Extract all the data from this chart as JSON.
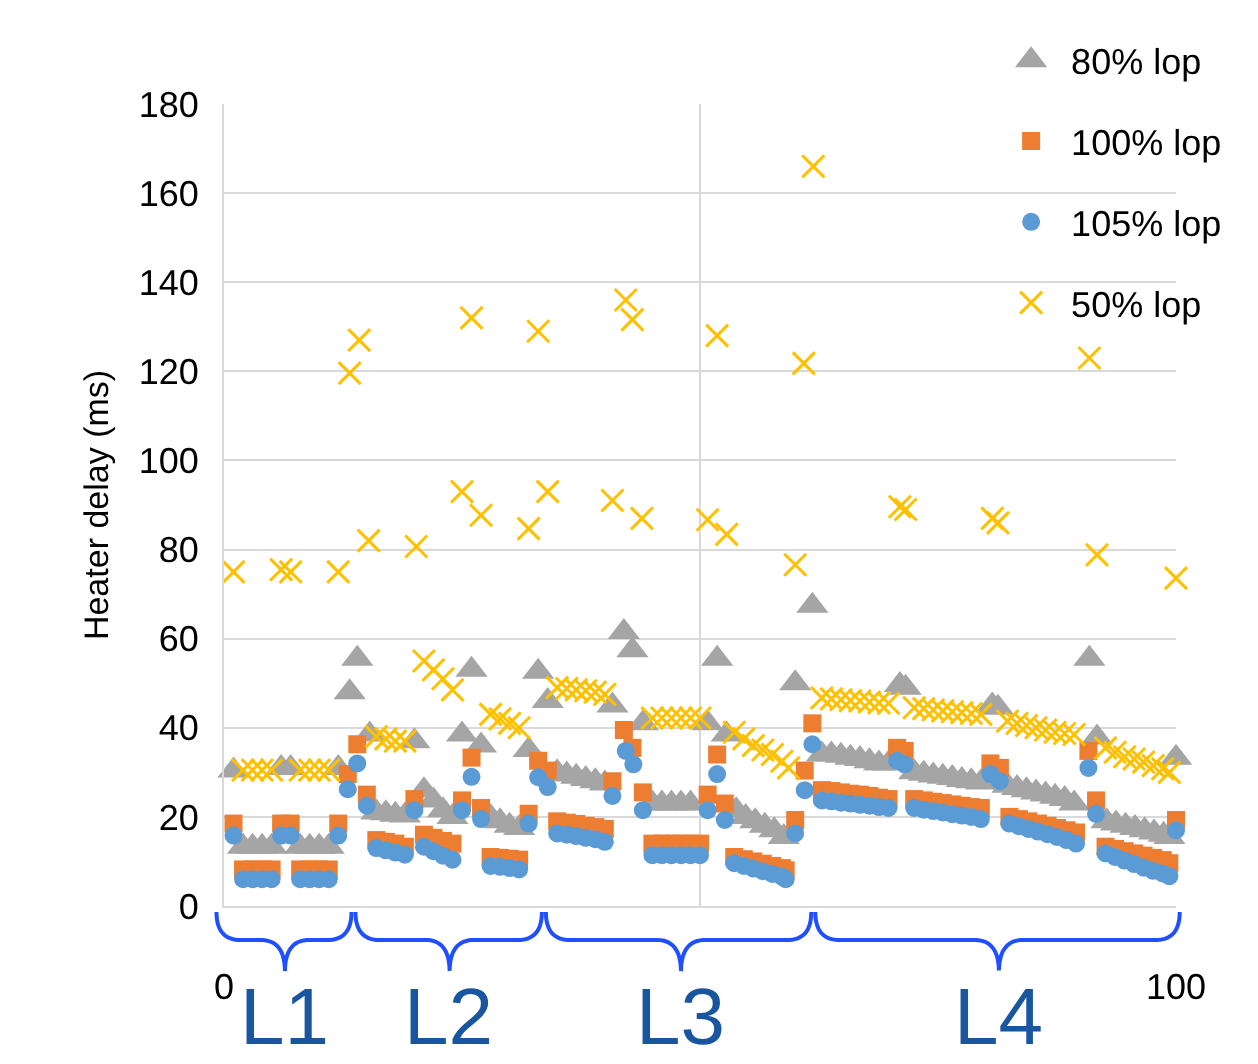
{
  "chart_data": {
    "type": "scatter",
    "ylabel": "Heater delay (ms)",
    "xlim": [
      0,
      100
    ],
    "xticks": [
      0,
      {
        "value": 50,
        "label": null
      },
      100
    ],
    "ylim": [
      0,
      180
    ],
    "yticks": [
      0,
      20,
      40,
      60,
      80,
      100,
      120,
      140,
      160,
      180
    ],
    "grid": true,
    "legend": "top right",
    "annotations": [
      "L1",
      "L2",
      "L3",
      "L4"
    ],
    "series": [
      {
        "name": "80% lop",
        "color": "#a5a5a5",
        "marker": "triangle",
        "x": [
          1,
          2,
          3,
          4,
          5,
          6,
          7,
          8,
          9,
          10,
          11,
          12,
          13.2,
          14,
          15.3,
          16,
          17,
          18,
          19,
          20,
          21,
          22,
          23,
          24,
          25,
          26,
          27,
          28,
          29,
          30,
          31,
          32,
          33,
          34,
          35,
          36,
          37,
          38,
          39,
          40,
          40.8,
          42,
          42.9,
          44,
          45,
          46,
          47,
          48,
          49,
          50.8,
          51.8,
          52.8,
          53.8,
          54.8,
          55.8,
          56.8,
          57.8,
          58.8,
          60,
          61.8,
          62.8,
          63.8,
          64.8,
          65.8,
          66.8,
          67.8,
          68.8,
          69.8,
          71,
          71.6,
          72.5,
          73.5,
          74.5,
          75.5,
          76.5,
          77.5,
          78.5,
          79.5,
          80.7,
          81.3,
          82.3,
          83.3,
          84.3,
          85.3,
          86.3,
          87.3,
          88.3,
          89.3,
          90.9,
          91.7,
          92.7,
          93.7,
          94.7,
          95.7,
          96.7,
          97.7,
          98.7,
          99.3,
          100
        ],
        "values": [
          30.4,
          13.3,
          13.3,
          13.3,
          13.3,
          31,
          31,
          13.3,
          13.3,
          13.3,
          13.3,
          31,
          48,
          55.5,
          38.5,
          21,
          20.8,
          20.5,
          20.3,
          37,
          26,
          23.7,
          21.5,
          20,
          38.5,
          53,
          36,
          20,
          19,
          18,
          17.5,
          35,
          52.6,
          46,
          30,
          29.5,
          29,
          28.5,
          28,
          27.5,
          45,
          61.5,
          57.4,
          41,
          23,
          23,
          23,
          23,
          23,
          41,
          55.5,
          38.5,
          21.5,
          20,
          19,
          18,
          17,
          15.5,
          50,
          67.4,
          34,
          34,
          33.7,
          33.3,
          33,
          32.5,
          32,
          32,
          49.6,
          49,
          30,
          29.7,
          29.3,
          29,
          28.7,
          28.3,
          28,
          27.7,
          45,
          44.5,
          27,
          26.5,
          26,
          25.5,
          25,
          24.5,
          24,
          23,
          55.5,
          37.8,
          19,
          18.5,
          18,
          17.5,
          17,
          16.5,
          16,
          15.5,
          33.3
        ]
      },
      {
        "name": "100% lop",
        "color": "#ed7d31",
        "marker": "square",
        "x": [
          1,
          2,
          3,
          4,
          5,
          6,
          7,
          8,
          9,
          10,
          11,
          12,
          13,
          14,
          15,
          16,
          17,
          18,
          19,
          20,
          21,
          22,
          23,
          24,
          25,
          26,
          27,
          28,
          29,
          30,
          31,
          32,
          33,
          34,
          35,
          36,
          37,
          38,
          39,
          40,
          40.8,
          42,
          42.9,
          44,
          45,
          46,
          47,
          48,
          49,
          50,
          50.8,
          51.8,
          52.6,
          53.6,
          54.6,
          55.6,
          56.6,
          57.6,
          58.6,
          59,
          60,
          61,
          61.8,
          62.8,
          63.8,
          64.8,
          65.8,
          66.8,
          67.8,
          68.8,
          69.8,
          70.7,
          71.5,
          72.5,
          73.5,
          74.5,
          75.5,
          76.5,
          77.5,
          78.5,
          79.5,
          80.5,
          81.5,
          82.5,
          83.5,
          84.5,
          85.5,
          86.5,
          87.5,
          88.5,
          89.5,
          90.8,
          91.6,
          92.6,
          93.6,
          94.6,
          95.6,
          96.6,
          97.6,
          98.6,
          99.3,
          100
        ],
        "values": [
          18.5,
          8.2,
          8.2,
          8.2,
          8.2,
          18.5,
          18.5,
          8.2,
          8.2,
          8.2,
          8.2,
          18.5,
          29.6,
          36.3,
          25,
          14.8,
          14.4,
          14,
          13.3,
          24,
          16,
          15.3,
          14.6,
          14,
          23.7,
          33.3,
          22,
          11,
          10.8,
          10.6,
          10.4,
          20.7,
          32.6,
          30.4,
          19,
          18.7,
          18.4,
          18,
          17.7,
          17.3,
          28,
          39.5,
          35.5,
          25.5,
          14,
          14,
          14,
          14,
          14,
          14,
          25,
          34,
          23,
          11,
          10.5,
          10,
          9.5,
          9,
          8.5,
          8,
          19.3,
          30.4,
          41,
          26,
          25.8,
          25.5,
          25.2,
          25,
          24.7,
          24.3,
          24,
          35.5,
          34.8,
          24,
          23.7,
          23.4,
          23.1,
          22.8,
          22.5,
          22.2,
          22,
          32,
          31,
          20,
          19.5,
          19,
          18.5,
          18,
          17.5,
          17,
          16.5,
          34.8,
          23.7,
          13.3,
          12.8,
          12.3,
          11.8,
          11.3,
          10.8,
          10.3,
          9.6,
          19.3
        ]
      },
      {
        "name": "105% lop",
        "color": "#5b9bd5",
        "marker": "circle",
        "x": [
          1,
          2,
          3,
          4,
          5,
          6,
          7,
          8,
          9,
          10,
          11,
          12,
          13,
          14,
          15,
          16,
          17,
          18,
          19,
          20,
          21,
          22,
          23,
          24,
          25,
          26,
          27,
          28,
          29,
          30,
          31,
          32,
          33,
          34,
          35,
          36,
          37,
          38,
          39,
          40,
          40.8,
          42.2,
          43,
          44,
          45,
          46,
          47,
          48,
          49,
          50,
          50.8,
          51.8,
          52.6,
          53.6,
          54.6,
          55.6,
          56.6,
          57.6,
          58.6,
          59,
          60,
          61,
          61.8,
          62.8,
          63.8,
          64.8,
          65.8,
          66.8,
          67.8,
          68.8,
          69.8,
          70.7,
          71.5,
          72.5,
          73.5,
          74.5,
          75.5,
          76.5,
          77.5,
          78.5,
          79.5,
          80.5,
          81.5,
          82.5,
          83.5,
          84.5,
          85.5,
          86.5,
          87.5,
          88.5,
          89.5,
          90.8,
          91.6,
          92.6,
          93.6,
          94.6,
          95.6,
          96.6,
          97.6,
          98.6,
          99.3,
          100
        ],
        "values": [
          15.8,
          6,
          6,
          6,
          6,
          15.8,
          15.8,
          6,
          6,
          6,
          6,
          15.8,
          26.2,
          32,
          22.5,
          13,
          12.5,
          12,
          11.5,
          21.5,
          13.3,
          12.3,
          11.3,
          10.4,
          21.5,
          29,
          19.5,
          9,
          8.8,
          8.5,
          8.2,
          18.5,
          28.9,
          26.7,
          16.3,
          16,
          15.7,
          15.3,
          15,
          14.4,
          24.7,
          34.8,
          31.8,
          21.5,
          11.4,
          11.4,
          11.4,
          11.4,
          11.4,
          11.4,
          21.5,
          29.6,
          19.3,
          9.6,
          9,
          8.4,
          7.8,
          7.2,
          6.6,
          6,
          16.3,
          26,
          36.3,
          23.7,
          23.5,
          23.2,
          23,
          22.7,
          22.5,
          22.2,
          22,
          32.6,
          31.8,
          22,
          21.6,
          21.3,
          21,
          20.6,
          20.3,
          20,
          19.5,
          29.6,
          28,
          18.5,
          17.9,
          17.3,
          16.7,
          16.1,
          15.5,
          14.8,
          14,
          31,
          20.7,
          11.8,
          11,
          10.2,
          9.4,
          8.6,
          7.9,
          7.3,
          6.7,
          17
        ]
      },
      {
        "name": "50% lop",
        "color": "#ffc000",
        "marker": "cross",
        "x": [
          1,
          2,
          3,
          4,
          5,
          6,
          7,
          8,
          9,
          10,
          11,
          12,
          13.2,
          14.2,
          15.2,
          16,
          17,
          18,
          19,
          20.2,
          21,
          22,
          23,
          24,
          25,
          26,
          27,
          28,
          29,
          30,
          31,
          32,
          33,
          34,
          35,
          36,
          37,
          38,
          39,
          40,
          40.8,
          42.2,
          42.9,
          43.9,
          45,
          46,
          47,
          48,
          49,
          50,
          50.8,
          51.8,
          52.8,
          53.6,
          54.6,
          55.6,
          56.6,
          57.6,
          58.6,
          59.3,
          60,
          60.9,
          61.9,
          62.8,
          63.8,
          64.8,
          65.8,
          66.8,
          67.8,
          68.8,
          69.8,
          71,
          71.6,
          72.5,
          73.5,
          74.5,
          75.5,
          76.5,
          77.5,
          78.5,
          79.5,
          80.7,
          81.3,
          82.3,
          83.3,
          84.3,
          85.3,
          86.3,
          87.3,
          88.3,
          89.3,
          90.9,
          91.7,
          92.6,
          93.6,
          94.6,
          95.6,
          96.6,
          97.6,
          98.6,
          99.3,
          100
        ],
        "values": [
          75,
          30.5,
          30.5,
          30.5,
          30.5,
          75.5,
          75,
          30.5,
          30.5,
          30.5,
          30.5,
          75,
          119.6,
          127,
          82,
          38,
          37.5,
          37,
          37,
          80.7,
          55,
          53,
          51,
          48.5,
          93,
          132,
          87.7,
          43,
          42,
          41,
          40,
          84.7,
          129,
          93,
          49,
          48.8,
          48.5,
          48.3,
          48,
          47.5,
          91,
          136,
          131.6,
          87,
          42.2,
          42.2,
          42.2,
          42.2,
          42.2,
          42.2,
          86.7,
          128,
          83.4,
          39,
          37.5,
          36,
          35,
          34,
          32.5,
          31,
          76.6,
          121.8,
          166,
          46.7,
          46.5,
          46.3,
          46.1,
          46,
          45.8,
          45.6,
          45.5,
          89.6,
          89,
          44.5,
          44.3,
          44,
          43.8,
          43.6,
          43.4,
          43.2,
          43,
          87,
          86,
          41.5,
          41,
          40.5,
          40,
          39.5,
          39,
          38.7,
          38.5,
          123,
          78.8,
          35.5,
          34.5,
          33.5,
          33,
          32.3,
          31.5,
          30.8,
          30,
          73.6
        ]
      }
    ]
  }
}
